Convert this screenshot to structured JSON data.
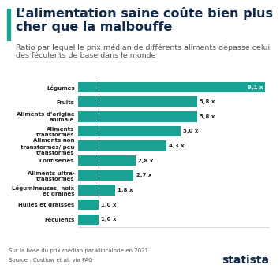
{
  "chart_data": {
    "type": "bar",
    "orientation": "horizontal",
    "title": "L’alimentation saine coûte bien plus cher que la malbouffe",
    "subtitle": "Ratio par lequel le prix médian de différents aliments dépasse celui des féculents de base dans le monde",
    "categories": [
      "Légumes",
      "Fruits",
      "Aliments d’origine animale",
      "Aliments transformés",
      "Aliments non transformés/ peu transformés",
      "Confiseries",
      "Aliments ultra-transformés",
      "Légumineuses, noix et graines",
      "Huiles et graisses",
      "Féculents"
    ],
    "values": [
      9.1,
      5.8,
      5.8,
      5.0,
      4.3,
      2.8,
      2.7,
      1.8,
      1.0,
      1.0
    ],
    "value_labels": [
      "9,1 x",
      "5,8 x",
      "5,8 x",
      "5,0 x",
      "4,3 x",
      "2,8 x",
      "2,7 x",
      "1,8 x",
      "1,0 x",
      "1,0 x"
    ],
    "reference_value": 1.0,
    "xlim": [
      0,
      9.3
    ],
    "color": "#1aa394",
    "data_labels": true,
    "tick_labels": "y",
    "grid": false,
    "notes": [
      "Sur la base du prix médian par kilocalorie en 2021",
      "Source : Costlow et al. via FAO"
    ],
    "logo": "statista"
  }
}
